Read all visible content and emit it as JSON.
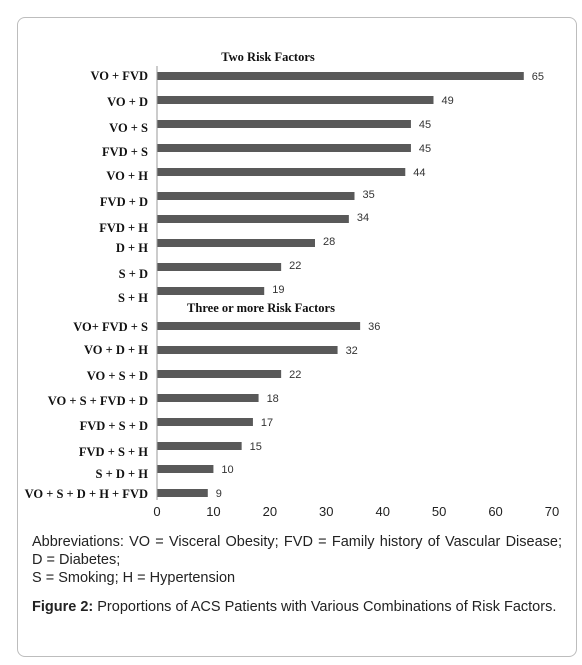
{
  "chart_data": {
    "type": "bar",
    "orientation": "horizontal",
    "groups": [
      {
        "title": "Two Risk Factors",
        "categories": [
          "VO + FVD",
          "VO + D",
          "VO + S",
          "FVD + S",
          "VO + H",
          "FVD + D",
          "FVD + H",
          "D + H",
          "S + D",
          "S + H"
        ],
        "values": [
          65,
          49,
          45,
          45,
          44,
          35,
          34,
          28,
          22,
          19
        ]
      },
      {
        "title": "Three or more Risk Factors",
        "categories": [
          "VO+ FVD + S",
          "VO + D + H",
          "VO + S + D",
          "VO + S + FVD + D",
          "FVD + S + D",
          "FVD + S + H",
          "S + D + H",
          "VO + S + D + H + FVD"
        ],
        "values": [
          36,
          32,
          22,
          18,
          17,
          15,
          10,
          9
        ]
      }
    ],
    "xlim": [
      0,
      70
    ],
    "xticks": [
      "0",
      "10",
      "20",
      "30",
      "40",
      "50",
      "60",
      "70"
    ],
    "bar_color": "#595959",
    "grid": false,
    "legend": false
  },
  "caption": {
    "abbreviations_line1": "Abbreviations: VO = Visceral Obesity; FVD = Family history of Vascular Disease; D = Diabetes;",
    "abbreviations_line2": "S = Smoking; H = Hypertension",
    "figure_label": "Figure 2:",
    "figure_text": " Proportions of ACS Patients with Various Combinations of Risk Factors."
  }
}
